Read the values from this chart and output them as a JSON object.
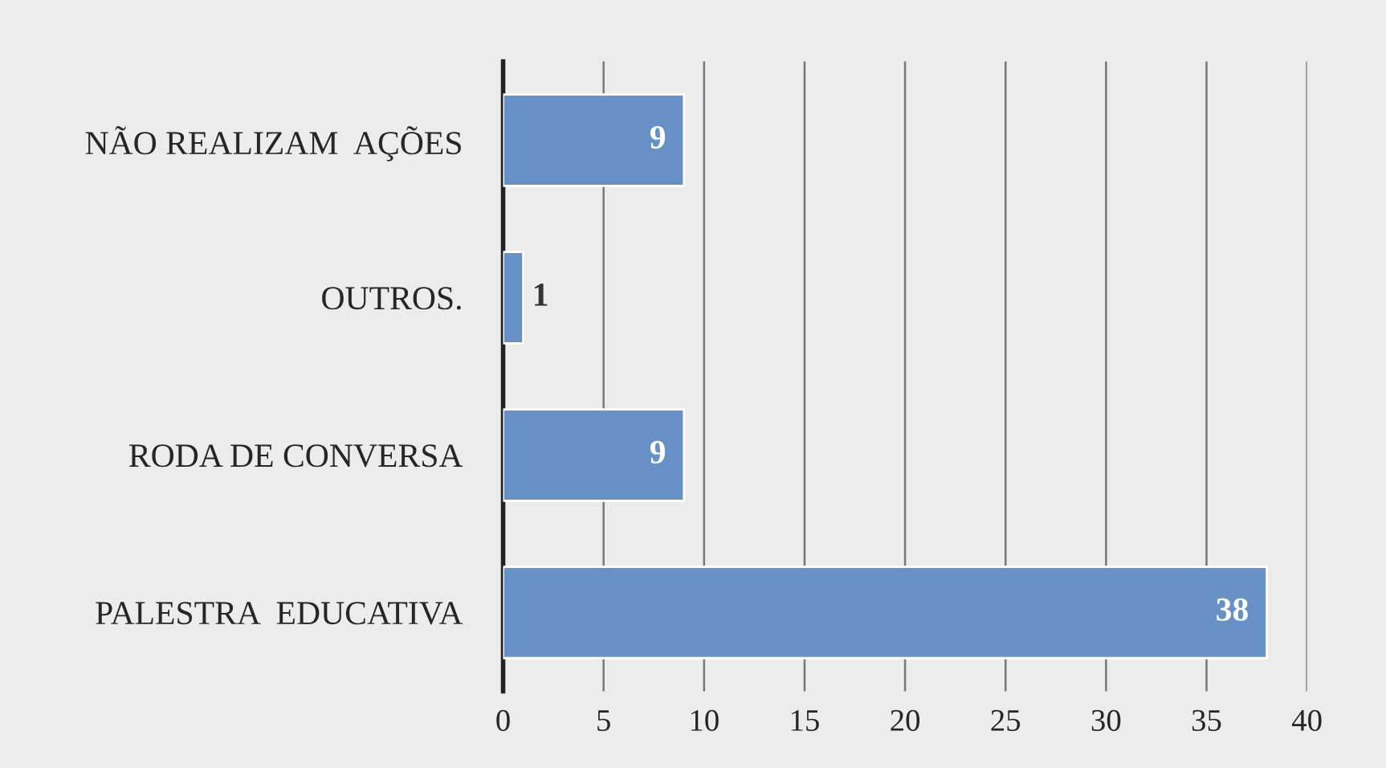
{
  "chart_data": {
    "type": "bar",
    "orientation": "horizontal",
    "categories": [
      "NÃO REALIZAM  AÇÕES",
      "OUTROS.",
      "RODA DE CONVERSA",
      "PALESTRA  EDUCATIVA"
    ],
    "values": [
      9,
      1,
      9,
      38
    ],
    "color": "#6690c6",
    "xlim": [
      0,
      40
    ],
    "xticks": [
      0,
      5,
      10,
      15,
      20,
      25,
      30,
      35,
      40
    ],
    "grid": "x",
    "data_labels": true
  }
}
